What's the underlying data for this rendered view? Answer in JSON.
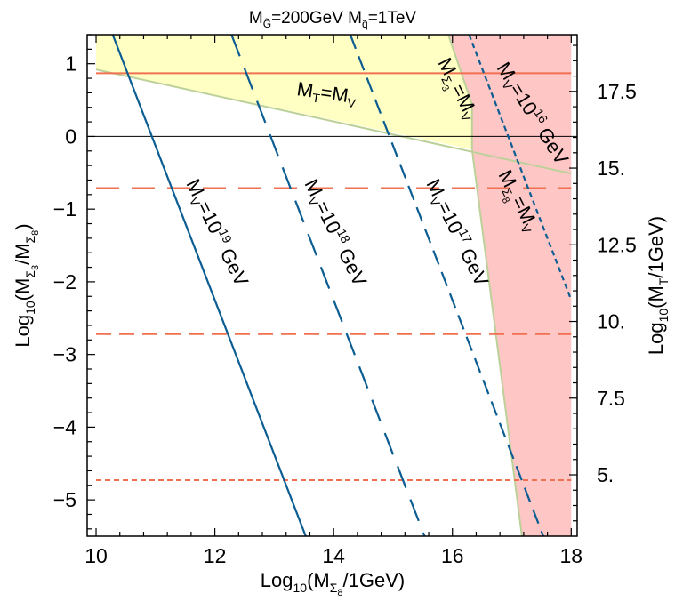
{
  "chart_data": {
    "type": "line",
    "title": "M_G̃ = 200GeV M_q̃ = 1TeV",
    "title_parts": {
      "m1_base": "M",
      "m1_sub": "G̃",
      "m1_rest": "=200GeV ",
      "m2_base": "M",
      "m2_sub": "q̃",
      "m2_rest": "=1TeV"
    },
    "xlabel": "Log10(M_Σ8/1GeV)",
    "xlabel_parts": {
      "pre": "Log",
      "sub": "10",
      "mid": "(M",
      "msub": "Σ",
      "msubsub": "8",
      "post": "/1GeV)"
    },
    "ylabel": "Log10(M_Σ3/M_Σ8)",
    "ylabel_parts": {
      "pre": "Log",
      "sub": "10",
      "mid": "(M",
      "s1": "Σ",
      "s1s": "3",
      "slash": "/M",
      "s2": "Σ",
      "s2s": "8",
      "post": ")"
    },
    "y2label": "Log10(M_T/1GeV)",
    "y2label_parts": {
      "pre": "Log",
      "sub": "10",
      "mid": "(M",
      "msub": "T",
      "post": "/1GeV)"
    },
    "xlim": [
      9.85,
      18.1
    ],
    "ylim": [
      -5.5,
      1.4
    ],
    "y2lim": [
      3.0,
      19.35
    ],
    "xticks": [
      10,
      12,
      14,
      16,
      18
    ],
    "yticks": [
      1,
      0,
      -1,
      -2,
      -3,
      -4,
      -5
    ],
    "yticklabels": [
      "1",
      "0",
      "−1",
      "−2",
      "−3",
      "−4",
      "−5"
    ],
    "y2ticks": [
      5,
      7.5,
      10,
      12.5,
      15,
      17.5
    ],
    "y2ticklabels": [
      "5.",
      "7.5",
      "10.",
      "12.5",
      "15.",
      "17.5"
    ],
    "grid": false,
    "regions": [
      {
        "name": "yellow",
        "color": "#ffffc4",
        "x": [
          10,
          15.93,
          16.33,
          16.33,
          10
        ],
        "y": [
          1.4,
          1.4,
          0.44,
          -0.18,
          0.92
        ]
      },
      {
        "name": "pink",
        "color": "#ffc6c6",
        "x": [
          15.93,
          18.0,
          18.0,
          17.17,
          16.33,
          16.33
        ],
        "y": [
          1.4,
          1.4,
          -5.5,
          -5.5,
          -0.18,
          0.44
        ]
      }
    ],
    "boundary_color": "#bcd199",
    "boundary_lines": [
      {
        "x": [
          10,
          18
        ],
        "y": [
          0.92,
          -0.51
        ]
      },
      {
        "x": [
          15.93,
          16.33
        ],
        "y": [
          1.4,
          0.44
        ]
      },
      {
        "x": [
          16.33,
          16.33
        ],
        "y": [
          0.44,
          -0.18
        ]
      },
      {
        "x": [
          16.33,
          17.17
        ],
        "y": [
          -0.18,
          -5.5
        ]
      }
    ],
    "zero_line": 0,
    "series": [
      {
        "name": "M_V=10^19 GeV",
        "color": "#0b5d92",
        "dash": "solid",
        "x": [
          10.28,
          13.53
        ],
        "y": [
          1.4,
          -5.5
        ]
      },
      {
        "name": "M_V=10^18 GeV",
        "color": "#0b5d92",
        "dash": "long",
        "x": [
          12.28,
          15.53
        ],
        "y": [
          1.4,
          -5.5
        ]
      },
      {
        "name": "M_V=10^17 GeV",
        "color": "#0b5d92",
        "dash": "medium",
        "x": [
          14.28,
          17.53
        ],
        "y": [
          1.4,
          -5.5
        ]
      },
      {
        "name": "M_V=10^16 GeV",
        "color": "#0b5d92",
        "dash": "short",
        "x": [
          16.28,
          18.0
        ],
        "y": [
          1.4,
          -2.25
        ]
      }
    ],
    "hlines": [
      {
        "color": "#f07050",
        "dash": "solid",
        "y": 0.87
      },
      {
        "color": "#f07050",
        "dash": "long",
        "y": -0.71
      },
      {
        "color": "#f07050",
        "dash": "medium",
        "y": -2.72
      },
      {
        "color": "#f07050",
        "dash": "short",
        "y": -4.73
      }
    ],
    "annotations": {
      "mt_mv": {
        "a": "M",
        "as": "T",
        "b": "=M",
        "bs": "V"
      },
      "mv19": {
        "a": "M",
        "as": "V",
        "b": "=10",
        "sup": "19",
        "c": " GeV"
      },
      "mv18": {
        "a": "M",
        "as": "V",
        "b": "=10",
        "sup": "18",
        "c": " GeV"
      },
      "mv17": {
        "a": "M",
        "as": "V",
        "b": "=10",
        "sup": "17",
        "c": " GeV"
      },
      "mv16": {
        "a": "M",
        "as": "V",
        "b": "=10",
        "sup": "16",
        "c": " GeV"
      },
      "ms3": {
        "a": "M",
        "as": "Σ",
        "ass": "3",
        "b": "=M",
        "bs": "V"
      },
      "ms8": {
        "a": "M",
        "as": "Σ",
        "ass": "8",
        "b": "=M",
        "bs": "V"
      }
    }
  }
}
